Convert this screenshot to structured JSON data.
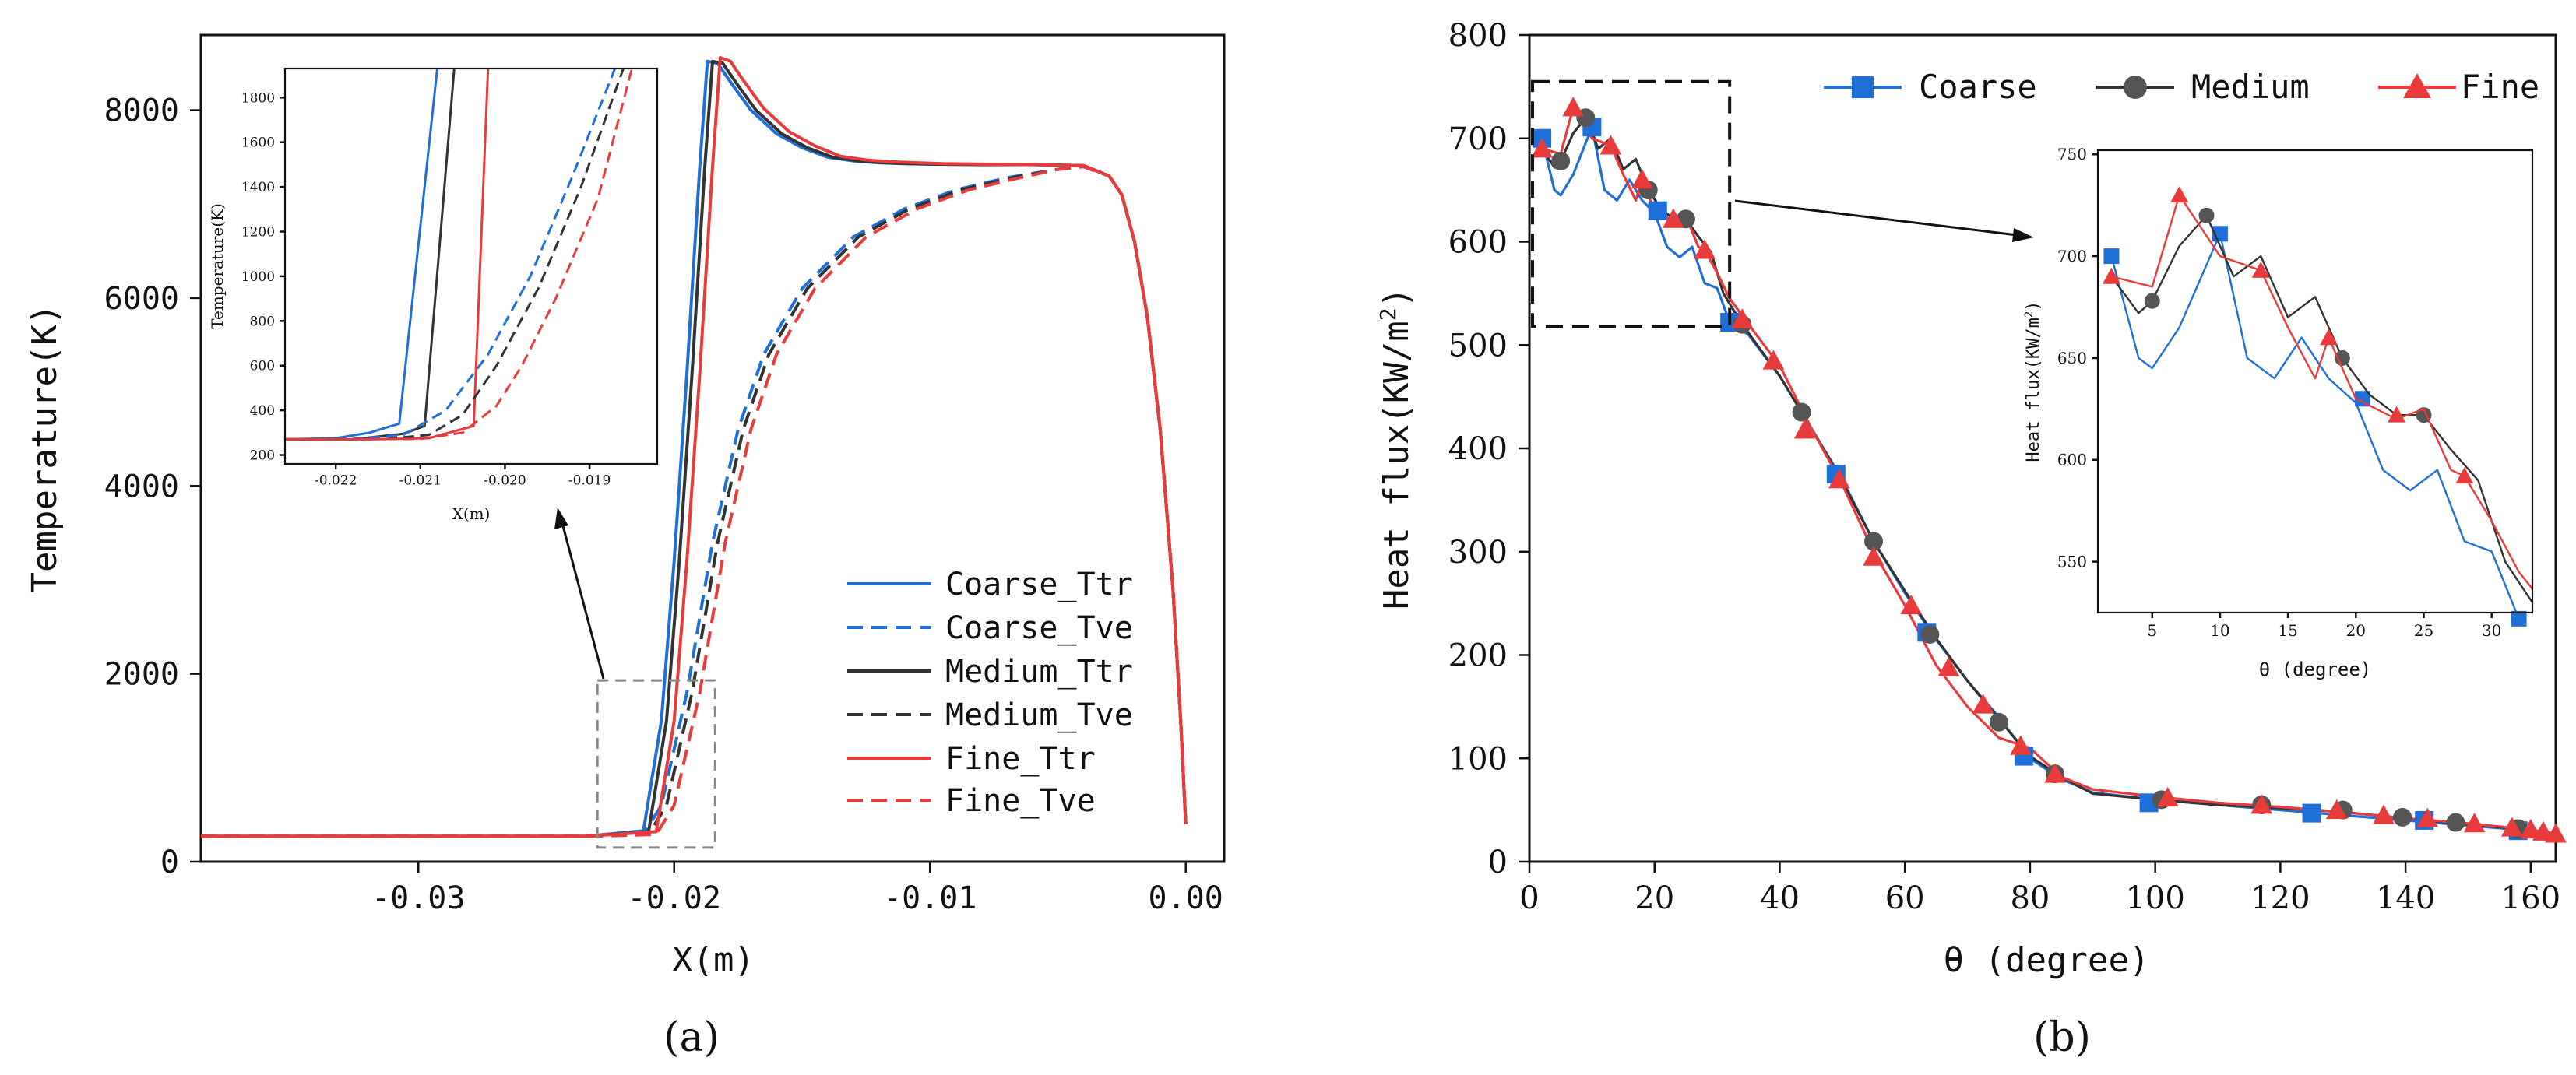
{
  "chart_data": [
    {
      "panel": "a",
      "type": "line",
      "caption": "(a)",
      "xlabel": "X(m)",
      "ylabel": "Temperature(K)",
      "xlim": [
        -0.0385,
        0.0015
      ],
      "ylim": [
        0,
        8800
      ],
      "xticks": [
        -0.03,
        -0.02,
        -0.01,
        0.0
      ],
      "xtick_labels": [
        "-0.03",
        "-0.02",
        "-0.01",
        "0.00"
      ],
      "yticks": [
        0,
        2000,
        4000,
        6000,
        8000
      ],
      "ytick_labels": [
        "0",
        "2000",
        "4000",
        "6000",
        "8000"
      ],
      "legend_position": "lower-right",
      "series": [
        {
          "name": "Coarse_Ttr",
          "color": "#1f6fd8",
          "dash": "solid",
          "x": [
            -0.0385,
            -0.0235,
            -0.0212,
            -0.0205,
            -0.02,
            -0.0195,
            -0.019,
            -0.0187,
            -0.0183,
            -0.0178,
            -0.017,
            -0.016,
            -0.015,
            -0.014,
            -0.013,
            -0.012,
            -0.011,
            -0.01,
            -0.008,
            -0.006,
            -0.004,
            -0.003,
            -0.0025,
            -0.002,
            -0.0015,
            -0.001,
            -0.0005,
            -0.0002,
            0.0
          ],
          "y": [
            270,
            270,
            330,
            1500,
            3200,
            5200,
            7400,
            8520,
            8500,
            8300,
            8000,
            7750,
            7600,
            7500,
            7460,
            7440,
            7430,
            7425,
            7420,
            7420,
            7410,
            7300,
            7100,
            6600,
            5800,
            4600,
            2900,
            1500,
            400
          ]
        },
        {
          "name": "Coarse_Tve",
          "color": "#1f6fd8",
          "dash": "dashed",
          "x": [
            -0.0385,
            -0.0235,
            -0.0212,
            -0.0205,
            -0.0195,
            -0.0185,
            -0.0175,
            -0.0165,
            -0.015,
            -0.013,
            -0.011,
            -0.009,
            -0.007,
            -0.005,
            -0.004,
            -0.003,
            -0.0025,
            -0.002,
            -0.0015,
            -0.001,
            -0.0005,
            -0.0002,
            0.0
          ],
          "y": [
            270,
            270,
            290,
            600,
            1800,
            3400,
            4600,
            5400,
            6100,
            6650,
            6950,
            7150,
            7280,
            7370,
            7400,
            7300,
            7100,
            6600,
            5800,
            4600,
            2900,
            1500,
            400
          ]
        },
        {
          "name": "Medium_Ttr",
          "color": "#333333",
          "dash": "solid",
          "x": [
            -0.0385,
            -0.0235,
            -0.021,
            -0.0203,
            -0.0198,
            -0.0193,
            -0.0188,
            -0.0185,
            -0.0181,
            -0.0176,
            -0.0168,
            -0.0158,
            -0.0148,
            -0.0138,
            -0.0128,
            -0.0118,
            -0.0108,
            -0.0098,
            -0.008,
            -0.006,
            -0.004,
            -0.003,
            -0.0025,
            -0.002,
            -0.0015,
            -0.001,
            -0.0005,
            -0.0002,
            0.0
          ],
          "y": [
            270,
            270,
            320,
            1500,
            3200,
            5200,
            7400,
            8520,
            8500,
            8300,
            8000,
            7750,
            7600,
            7500,
            7460,
            7440,
            7430,
            7425,
            7420,
            7420,
            7410,
            7300,
            7100,
            6600,
            5800,
            4600,
            2900,
            1500,
            400
          ]
        },
        {
          "name": "Medium_Tve",
          "color": "#333333",
          "dash": "dashed",
          "x": [
            -0.0385,
            -0.0235,
            -0.021,
            -0.0203,
            -0.0193,
            -0.0183,
            -0.0173,
            -0.0163,
            -0.0148,
            -0.0128,
            -0.0108,
            -0.0088,
            -0.0068,
            -0.005,
            -0.004,
            -0.003,
            -0.0025,
            -0.002,
            -0.0015,
            -0.001,
            -0.0005,
            -0.0002,
            0.0
          ],
          "y": [
            270,
            270,
            290,
            600,
            1800,
            3400,
            4600,
            5400,
            6100,
            6650,
            6950,
            7150,
            7280,
            7370,
            7400,
            7300,
            7100,
            6600,
            5800,
            4600,
            2900,
            1500,
            400
          ]
        },
        {
          "name": "Fine_Ttr",
          "color": "#e83b3b",
          "dash": "solid",
          "x": [
            -0.0385,
            -0.0235,
            -0.0207,
            -0.02,
            -0.0195,
            -0.019,
            -0.0185,
            -0.0182,
            -0.0178,
            -0.0173,
            -0.0165,
            -0.0155,
            -0.0145,
            -0.0135,
            -0.0125,
            -0.0115,
            -0.0105,
            -0.0095,
            -0.008,
            -0.006,
            -0.004,
            -0.003,
            -0.0025,
            -0.002,
            -0.0015,
            -0.001,
            -0.0005,
            -0.0002,
            0.0
          ],
          "y": [
            270,
            270,
            320,
            1500,
            3200,
            5200,
            7400,
            8560,
            8520,
            8320,
            8020,
            7770,
            7620,
            7510,
            7470,
            7450,
            7440,
            7430,
            7425,
            7420,
            7410,
            7300,
            7100,
            6600,
            5800,
            4600,
            2900,
            1500,
            400
          ]
        },
        {
          "name": "Fine_Tve",
          "color": "#e83b3b",
          "dash": "dashed",
          "x": [
            -0.0385,
            -0.0235,
            -0.0207,
            -0.02,
            -0.019,
            -0.018,
            -0.017,
            -0.016,
            -0.0145,
            -0.0125,
            -0.0105,
            -0.0085,
            -0.0065,
            -0.005,
            -0.004,
            -0.003,
            -0.0025,
            -0.002,
            -0.0015,
            -0.001,
            -0.0005,
            -0.0002,
            0.0
          ],
          "y": [
            270,
            270,
            290,
            600,
            1800,
            3400,
            4600,
            5400,
            6100,
            6650,
            6950,
            7150,
            7280,
            7370,
            7400,
            7300,
            7100,
            6600,
            5800,
            4600,
            2900,
            1500,
            400
          ]
        }
      ],
      "zoom_box": {
        "xlim": [
          -0.023,
          -0.0184
        ],
        "ylim": [
          150,
          1930
        ]
      },
      "inset": {
        "xlabel": "X(m)",
        "ylabel": "Temperature(K)",
        "xlim": [
          -0.0226,
          -0.0182
        ],
        "ylim": [
          160,
          1930
        ],
        "xticks": [
          -0.022,
          -0.021,
          -0.02,
          -0.019
        ],
        "xtick_labels": [
          "-0.022",
          "-0.021",
          "-0.020",
          "-0.019"
        ],
        "yticks": [
          200,
          400,
          600,
          800,
          1000,
          1200,
          1400,
          1600,
          1800
        ],
        "ytick_labels": [
          "200",
          "400",
          "600",
          "800",
          "1000",
          "1200",
          "1400",
          "1600",
          "1800"
        ],
        "series": [
          {
            "name": "Coarse_Ttr",
            "x": [
              -0.0226,
              -0.022,
              -0.0216,
              -0.02125,
              -0.0208
            ],
            "y": [
              270,
              275,
              300,
              340,
              1930
            ]
          },
          {
            "name": "Medium_Ttr",
            "x": [
              -0.0226,
              -0.0218,
              -0.0212,
              -0.02095,
              -0.0206
            ],
            "y": [
              270,
              270,
              295,
              330,
              1930
            ]
          },
          {
            "name": "Fine_Ttr",
            "x": [
              -0.0226,
              -0.0216,
              -0.0209,
              -0.02037,
              -0.0202
            ],
            "y": [
              270,
              270,
              275,
              330,
              1930
            ]
          },
          {
            "name": "Coarse_Tve",
            "x": [
              -0.0226,
              -0.0218,
              -0.0212,
              -0.0207,
              -0.0202,
              -0.0197,
              -0.0192,
              -0.0187
            ],
            "y": [
              270,
              272,
              290,
              400,
              650,
              1000,
              1450,
              1930
            ]
          },
          {
            "name": "Medium_Tve",
            "x": [
              -0.0226,
              -0.0214,
              -0.0209,
              -0.0205,
              -0.0201,
              -0.0196,
              -0.0191,
              -0.0186
            ],
            "y": [
              270,
              272,
              290,
              380,
              600,
              950,
              1400,
              1930
            ]
          },
          {
            "name": "Fine_Tve",
            "x": [
              -0.0226,
              -0.021,
              -0.0205,
              -0.0201,
              -0.0198,
              -0.0194,
              -0.0189,
              -0.0185
            ],
            "y": [
              270,
              272,
              300,
              420,
              600,
              900,
              1350,
              1930
            ]
          }
        ]
      }
    },
    {
      "panel": "b",
      "type": "line",
      "caption": "(b)",
      "xlabel": "θ (degree)",
      "ylabel_main": "Heat flux(KW/m",
      "ylabel_sup": "2",
      "ylabel_close": ")",
      "xlim": [
        0,
        164
      ],
      "ylim": [
        0,
        800
      ],
      "xticks": [
        0,
        20,
        40,
        60,
        80,
        100,
        120,
        140,
        160
      ],
      "xtick_labels": [
        "0",
        "20",
        "40",
        "60",
        "80",
        "100",
        "120",
        "140",
        "160"
      ],
      "yticks": [
        0,
        100,
        200,
        300,
        400,
        500,
        600,
        700,
        800
      ],
      "ytick_labels": [
        "0",
        "100",
        "200",
        "300",
        "400",
        "500",
        "600",
        "700",
        "800"
      ],
      "legend_position": "top",
      "series": [
        {
          "name": "Coarse",
          "color": "#1f6fd8",
          "marker": "square",
          "x": [
            2,
            4,
            5,
            7,
            10,
            12,
            14,
            16,
            18,
            20,
            22,
            24,
            26,
            28,
            30,
            32,
            35,
            40,
            45,
            50,
            55,
            60,
            65,
            70,
            75,
            80,
            85,
            90,
            100,
            110,
            120,
            130,
            140,
            150,
            160,
            164
          ],
          "y": [
            700,
            650,
            645,
            665,
            711,
            650,
            640,
            660,
            640,
            628,
            595,
            585,
            595,
            560,
            555,
            522,
            510,
            470,
            420,
            370,
            310,
            260,
            215,
            175,
            140,
            100,
            80,
            67,
            60,
            55,
            50,
            45,
            40,
            35,
            30,
            27
          ],
          "marker_x": [
            2,
            10,
            20.5,
            32,
            49,
            63.5,
            79,
            99,
            125,
            143,
            158
          ],
          "marker_y": [
            700,
            711,
            630,
            522,
            375,
            222,
            102,
            57,
            47,
            40,
            30
          ]
        },
        {
          "name": "Medium",
          "color": "#333333",
          "marker": "circle",
          "x": [
            2,
            4,
            5,
            7,
            9,
            11,
            13,
            15,
            17,
            19,
            21,
            23,
            25,
            27,
            29,
            31,
            34,
            40,
            45,
            50,
            55,
            60,
            65,
            70,
            75,
            80,
            85,
            90,
            100,
            110,
            120,
            130,
            140,
            150,
            160,
            164
          ],
          "y": [
            690,
            672,
            678,
            705,
            720,
            690,
            700,
            670,
            680,
            650,
            632,
            622,
            622,
            605,
            590,
            550,
            520,
            470,
            420,
            368,
            310,
            262,
            216,
            175,
            138,
            102,
            82,
            66,
            60,
            55,
            52,
            48,
            42,
            36,
            31,
            27
          ],
          "marker_x": [
            5,
            9,
            19,
            25,
            34,
            43.5,
            55,
            64,
            75,
            84,
            101,
            117,
            130,
            139.5,
            148,
            158
          ],
          "marker_y": [
            678,
            720,
            650,
            622,
            520,
            435,
            310,
            220,
            135,
            85,
            60,
            55,
            50,
            43,
            38,
            32
          ]
        },
        {
          "name": "Fine",
          "color": "#e83b3b",
          "marker": "triangle",
          "x": [
            2,
            5,
            7,
            10,
            13,
            15,
            17,
            18,
            20,
            23,
            25,
            27,
            28,
            30,
            32,
            35,
            40,
            45,
            50,
            55,
            60,
            65,
            70,
            75,
            80,
            85,
            90,
            100,
            110,
            120,
            130,
            140,
            150,
            160,
            164
          ],
          "y": [
            690,
            685,
            730,
            700,
            693,
            665,
            640,
            660,
            630,
            620,
            625,
            595,
            592,
            570,
            545,
            520,
            480,
            420,
            365,
            300,
            248,
            190,
            150,
            120,
            110,
            82,
            70,
            63,
            57,
            53,
            48,
            42,
            37,
            31,
            26
          ],
          "marker_x": [
            2,
            7,
            13,
            18,
            23,
            28,
            34,
            39,
            44,
            49.5,
            55,
            61,
            67,
            72.5,
            78.5,
            84,
            102,
            117,
            129,
            136.5,
            143.5,
            151,
            157,
            160,
            162,
            164
          ],
          "marker_y": [
            690,
            730,
            693,
            660,
            622,
            592,
            525,
            485,
            418,
            370,
            295,
            248,
            188,
            152,
            112,
            85,
            62,
            55,
            50,
            45,
            42,
            37,
            33,
            31,
            29,
            27
          ]
        }
      ],
      "zoom_box": {
        "xlim": [
          0.5,
          32
        ],
        "ylim": [
          518,
          755
        ]
      },
      "inset": {
        "xlabel": "θ (degree)",
        "ylabel_main": "Heat flux(KW/m",
        "ylabel_sup": "2",
        "ylabel_close": ")",
        "xlim": [
          1,
          33
        ],
        "ylim": [
          525,
          752
        ],
        "xticks": [
          5,
          10,
          15,
          20,
          25,
          30
        ],
        "xtick_labels": [
          "5",
          "10",
          "15",
          "20",
          "25",
          "30"
        ],
        "yticks": [
          550,
          600,
          650,
          700,
          750
        ],
        "ytick_labels": [
          "550",
          "600",
          "650",
          "700",
          "750"
        ]
      }
    }
  ]
}
